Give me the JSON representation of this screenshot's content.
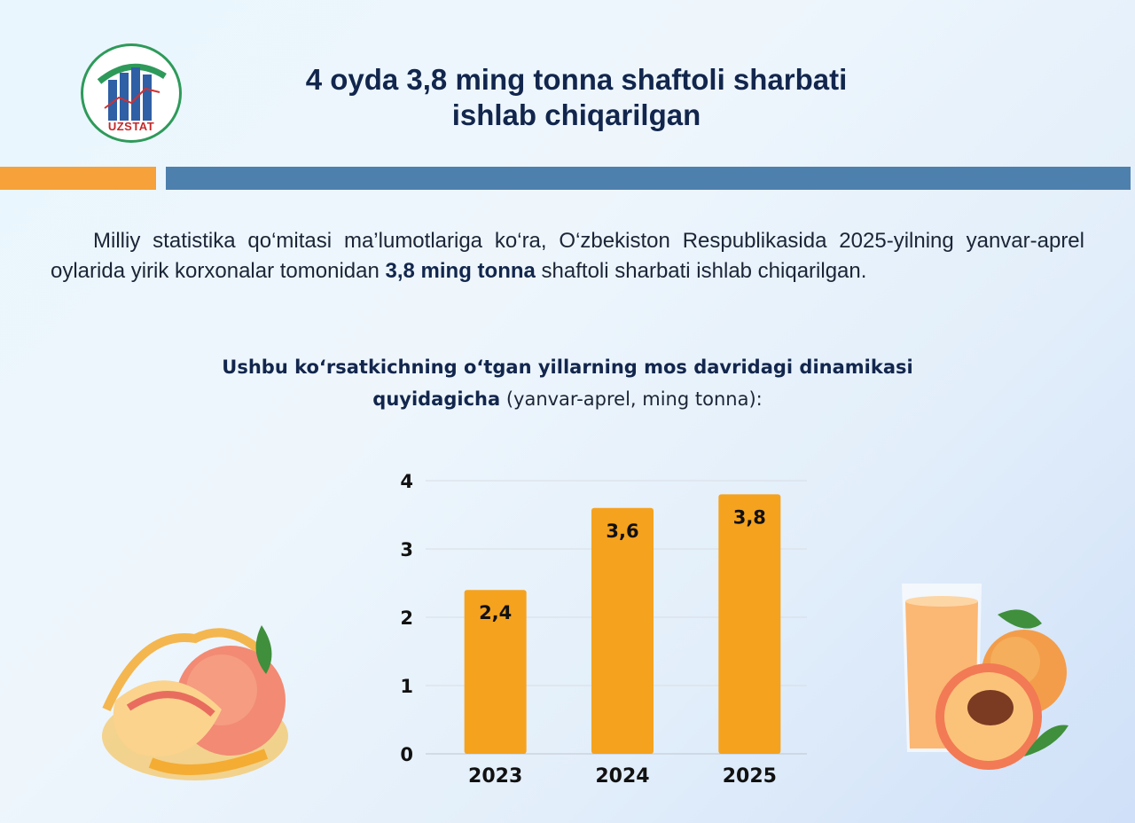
{
  "logo": {
    "text": "UZSTAT"
  },
  "header": {
    "title_line1": "4 oyda 3,8 ming tonna shaftoli sharbati",
    "title_line2": "ishlab chiqarilgan"
  },
  "intro": {
    "text_before": "Milliy statistika qo‘mitasi ma’lumotlariga ko‘ra, O‘zbekiston Respublikasida 2025-yilning yanvar-aprel oylarida yirik korxonalar tomonidan ",
    "highlight": "3,8 ming tonna",
    "text_after": " shaftoli sharbati ishlab chiqarilgan."
  },
  "subtitle": {
    "bold_line1": "Ushbu ko‘rsatkichning o‘tgan yillarning mos davridagi dinamikasi",
    "bold_line2": "quyidagicha",
    "normal": " (yanvar-aprel, ming tonna):"
  },
  "chart_data": {
    "type": "bar",
    "categories": [
      "2023",
      "2024",
      "2025"
    ],
    "values": [
      2.4,
      3.6,
      3.8
    ],
    "data_labels": [
      "2,4",
      "3,6",
      "3,8"
    ],
    "title": "",
    "xlabel": "",
    "ylabel": "",
    "ylim": [
      0,
      4
    ],
    "yticks": [
      "0",
      "1",
      "2",
      "3",
      "4"
    ],
    "grid": true,
    "bar_color": "#f5a21f"
  },
  "colors": {
    "title": "#12264d",
    "stripe_orange": "#f6a13a",
    "stripe_blue": "#4e80ad",
    "bar": "#f5a21f"
  }
}
